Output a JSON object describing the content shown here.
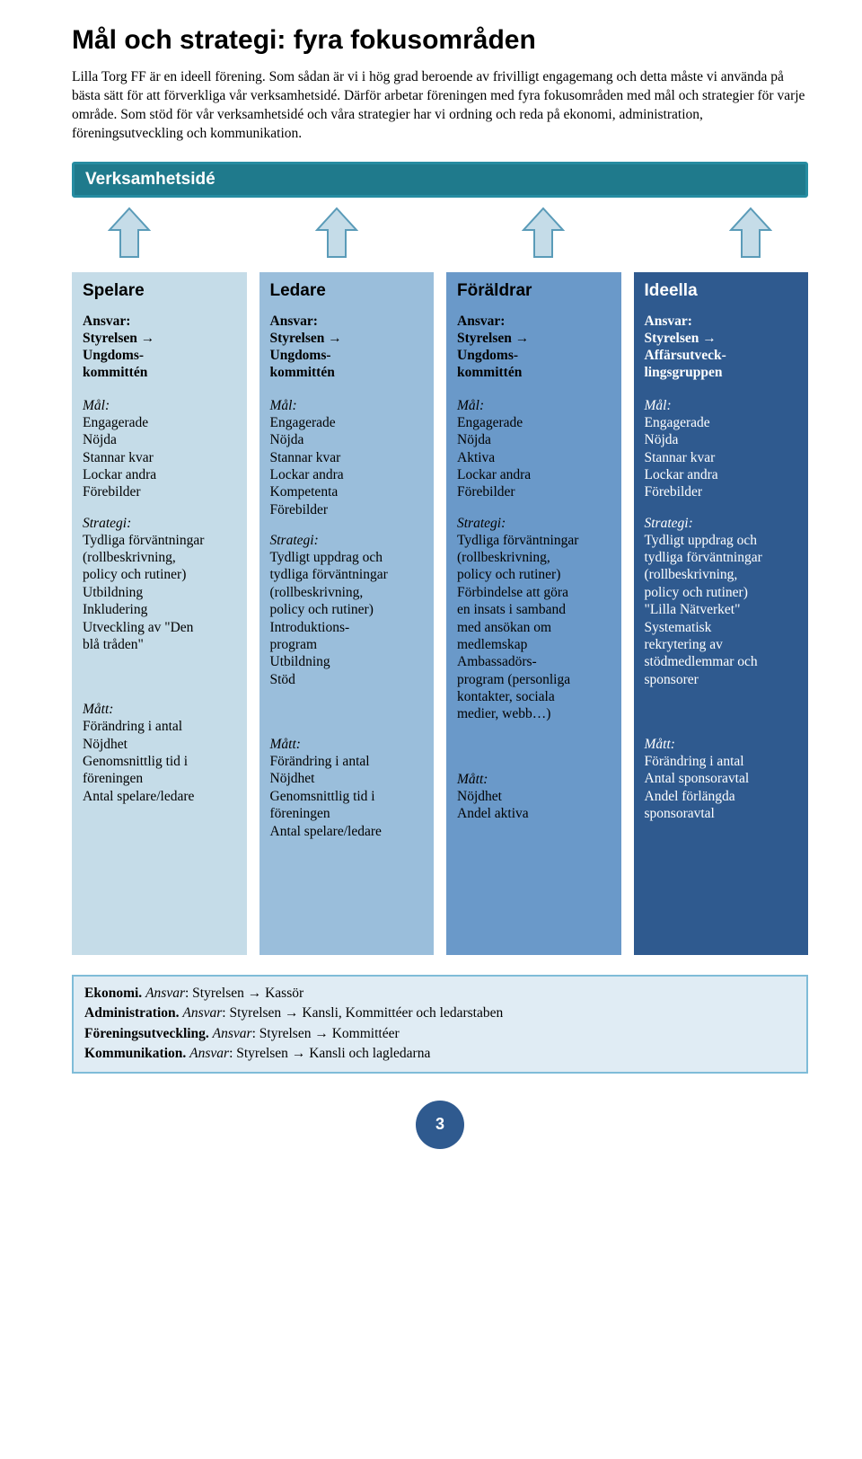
{
  "title": "Mål och strategi: fyra fokusområden",
  "intro": "Lilla Torg FF är en ideell förening. Som sådan är vi i hög grad beroende av frivilligt engagemang och detta måste vi använda på bästa sätt för att förverkliga vår verksamhetsidé. Därför arbetar föreningen med fyra fokusområden med mål och strategier för varje område. Som stöd för vår verksamhetsidé och våra strategier har vi ordning och reda på ekonomi, administration, föreningsutveckling och kommunikation.",
  "banner": "Verksamhetsidé",
  "banner_bg": "#1f7a8c",
  "banner_border": "#268ca1",
  "arrow_fill": "#c5dce8",
  "arrow_stroke": "#5a9bb8",
  "columns": [
    {
      "title": "Spelare",
      "bg": "#c5dce8",
      "text": "#000000",
      "ansvar": [
        "Styrelsen →",
        "Ungdoms-",
        "kommittén"
      ],
      "mal": [
        "Engagerade",
        "Nöjda",
        "Stannar kvar",
        "Lockar andra",
        "Förebilder"
      ],
      "strategi": [
        "Tydliga förväntningar",
        "(rollbeskrivning,",
        "policy och rutiner)",
        "Utbildning",
        "Inkludering",
        "Utveckling av \"Den",
        "blå tråden\""
      ],
      "matt": [
        "Förändring i antal",
        "Nöjdhet",
        "Genomsnittlig tid i",
        "föreningen",
        "Antal spelare/ledare"
      ]
    },
    {
      "title": "Ledare",
      "bg": "#9abedb",
      "text": "#000000",
      "ansvar": [
        "Styrelsen →",
        "Ungdoms-",
        "kommittén"
      ],
      "mal": [
        "Engagerade",
        "Nöjda",
        "Stannar kvar",
        "Lockar andra",
        "Kompetenta",
        "Förebilder"
      ],
      "strategi": [
        "Tydligt uppdrag och",
        "tydliga förväntningar",
        "(rollbeskrivning,",
        "policy och rutiner)",
        "Introduktions-",
        "program",
        "Utbildning",
        "Stöd"
      ],
      "matt": [
        "Förändring i antal",
        "Nöjdhet",
        "Genomsnittlig tid i",
        "föreningen",
        "Antal spelare/ledare"
      ]
    },
    {
      "title": "Föräldrar",
      "bg": "#6a99c9",
      "text": "#000000",
      "ansvar": [
        "Styrelsen →",
        "Ungdoms-",
        "kommittén"
      ],
      "mal": [
        "Engagerade",
        "Nöjda",
        "Aktiva",
        "Lockar andra",
        "Förebilder"
      ],
      "strategi": [
        "Tydliga förväntningar",
        "(rollbeskrivning,",
        "policy och rutiner)",
        "Förbindelse att göra",
        "en insats i samband",
        "med ansökan om",
        "medlemskap",
        "Ambassadörs-",
        "program (personliga",
        "kontakter, sociala",
        "medier, webb…)"
      ],
      "matt": [
        "Nöjdhet",
        "Andel aktiva"
      ]
    },
    {
      "title": "Ideella",
      "bg": "#2f5a8f",
      "text": "#ffffff",
      "ansvar": [
        "Styrelsen →",
        "Affärsutveck-",
        "lingsgruppen"
      ],
      "mal": [
        "Engagerade",
        "Nöjda",
        "Stannar kvar",
        "Lockar andra",
        "Förebilder"
      ],
      "strategi": [
        "Tydligt uppdrag och",
        "tydliga förväntningar",
        "(rollbeskrivning,",
        "policy och rutiner)",
        "\"Lilla Nätverket\"",
        "Systematisk",
        "rekrytering av",
        "stödmedlemmar och",
        "sponsorer"
      ],
      "matt": [
        "Förändring i antal",
        "Antal sponsoravtal",
        "Andel förlängda",
        "sponsoravtal"
      ]
    }
  ],
  "labels": {
    "ansvar": "Ansvar:",
    "mal": "Mål:",
    "strategi": "Strategi:",
    "matt": "Mått:"
  },
  "bottom": [
    {
      "bold": "Ekonomi.",
      "italic": "Ansvar",
      "rest": ": Styrelsen → Kassör"
    },
    {
      "bold": "Administration.",
      "italic": "Ansvar",
      "rest": ": Styrelsen → Kansli, Kommittéer och ledarstaben"
    },
    {
      "bold": "Föreningsutveckling.",
      "italic": "Ansvar",
      "rest": ": Styrelsen → Kommittéer"
    },
    {
      "bold": "Kommunikation.",
      "italic": "Ansvar",
      "rest": ": Styrelsen → Kansli och lagledarna"
    }
  ],
  "bottom_bg": "#e0ecf4",
  "bottom_border": "#7fbcd8",
  "page_number": "3",
  "page_circle_bg": "#2f5a8f"
}
